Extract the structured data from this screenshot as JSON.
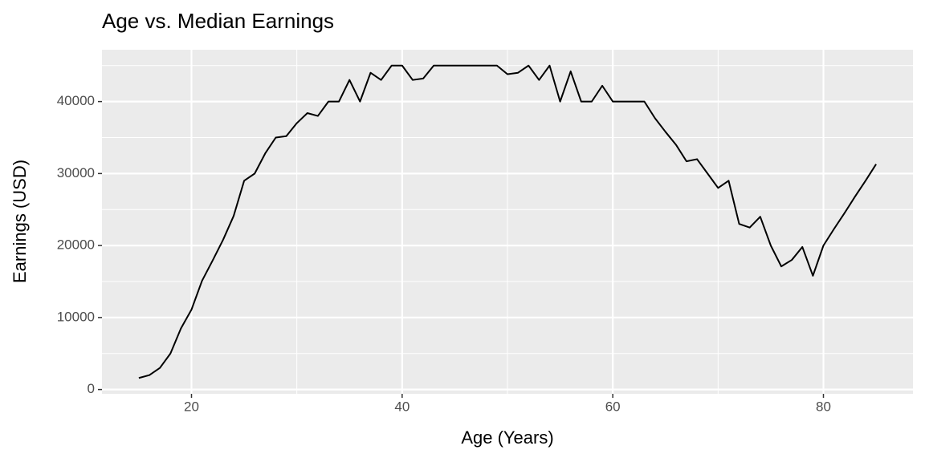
{
  "chart_data": {
    "type": "line",
    "title": "Age vs. Median Earnings",
    "x_label": "Age (Years)",
    "y_label": "Earnings (USD)",
    "x": [
      15,
      16,
      17,
      18,
      19,
      20,
      21,
      22,
      23,
      24,
      25,
      26,
      27,
      28,
      29,
      30,
      31,
      32,
      33,
      34,
      35,
      36,
      37,
      38,
      39,
      40,
      41,
      42,
      43,
      44,
      45,
      46,
      47,
      48,
      49,
      50,
      51,
      52,
      53,
      54,
      55,
      56,
      57,
      58,
      59,
      60,
      61,
      62,
      63,
      64,
      65,
      66,
      67,
      68,
      69,
      70,
      71,
      72,
      73,
      74,
      75,
      76,
      77,
      78,
      79,
      80,
      81,
      82,
      83,
      84,
      85
    ],
    "series": [
      {
        "name": "Earnings",
        "color": "#000000",
        "values": [
          1600,
          2000,
          3000,
          5000,
          8500,
          11100,
          15100,
          17900,
          20800,
          24100,
          29000,
          30000,
          32800,
          35000,
          35200,
          37000,
          38400,
          38000,
          40000,
          40000,
          43000,
          40000,
          44000,
          43000,
          45000,
          45000,
          43000,
          43200,
          45000,
          45000,
          45000,
          45000,
          45000,
          45000,
          45000,
          43800,
          44000,
          45000,
          43000,
          45000,
          40000,
          44200,
          40000,
          40000,
          42200,
          40000,
          40000,
          40000,
          40000,
          37700,
          35800,
          34000,
          31700,
          32000,
          30000,
          28000,
          29000,
          23000,
          22500,
          24000,
          20000,
          17100,
          18000,
          19800,
          15800,
          20000,
          22300,
          24500,
          26800,
          29000,
          31300
        ]
      }
    ],
    "xlim": [
      11.5,
      88.5
    ],
    "xticks": [
      20,
      40,
      60,
      80
    ],
    "xminor": [
      30,
      50,
      70
    ],
    "ylim": [
      -600,
      47200
    ],
    "yticks": [
      0,
      10000,
      20000,
      30000,
      40000
    ],
    "yminor": [
      5000,
      15000,
      25000,
      35000,
      45000
    ],
    "grid": true
  }
}
